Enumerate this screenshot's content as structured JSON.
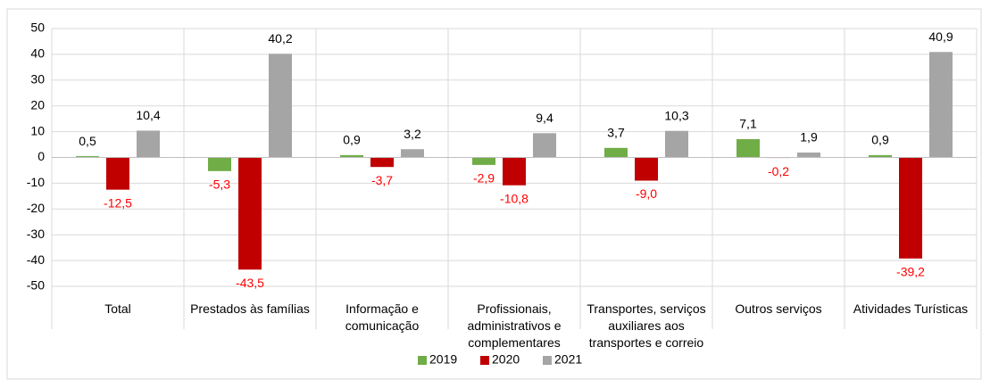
{
  "chart_data": {
    "type": "bar",
    "categories": [
      "Total",
      "Prestados às famílias",
      "Informação e comunicação",
      "Profissionais, administrativos e complementares",
      "Transportes, serviços auxiliares aos transportes e correio",
      "Outros serviços",
      "Atividades Turísticas"
    ],
    "series": [
      {
        "name": "2019",
        "color": "#70ad47",
        "values": [
          0.5,
          -5.3,
          0.9,
          -2.9,
          3.7,
          7.1,
          0.9
        ],
        "value_labels": [
          "0,5",
          "-5,3",
          "0,9",
          "-2,9",
          "3,7",
          "7,1",
          "0,9"
        ]
      },
      {
        "name": "2020",
        "color": "#c00000",
        "values": [
          -12.5,
          -43.5,
          -3.7,
          -10.8,
          -9.0,
          -0.2,
          -39.2
        ],
        "value_labels": [
          "-12,5",
          "-43,5",
          "-3,7",
          "-10,8",
          "-9,0",
          "-0,2",
          "-39,2"
        ]
      },
      {
        "name": "2021",
        "color": "#a5a5a5",
        "values": [
          10.4,
          40.2,
          3.2,
          9.4,
          10.3,
          1.9,
          40.9
        ],
        "value_labels": [
          "10,4",
          "40,2",
          "3,2",
          "9,4",
          "10,3",
          "1,9",
          "40,9"
        ]
      }
    ],
    "ylim": [
      -50,
      50
    ],
    "yticks": [
      -50,
      -40,
      -30,
      -20,
      -10,
      0,
      10,
      20,
      30,
      40,
      50
    ],
    "grid": true,
    "legend": "bottom",
    "negative_label_color": "#ff0000"
  }
}
